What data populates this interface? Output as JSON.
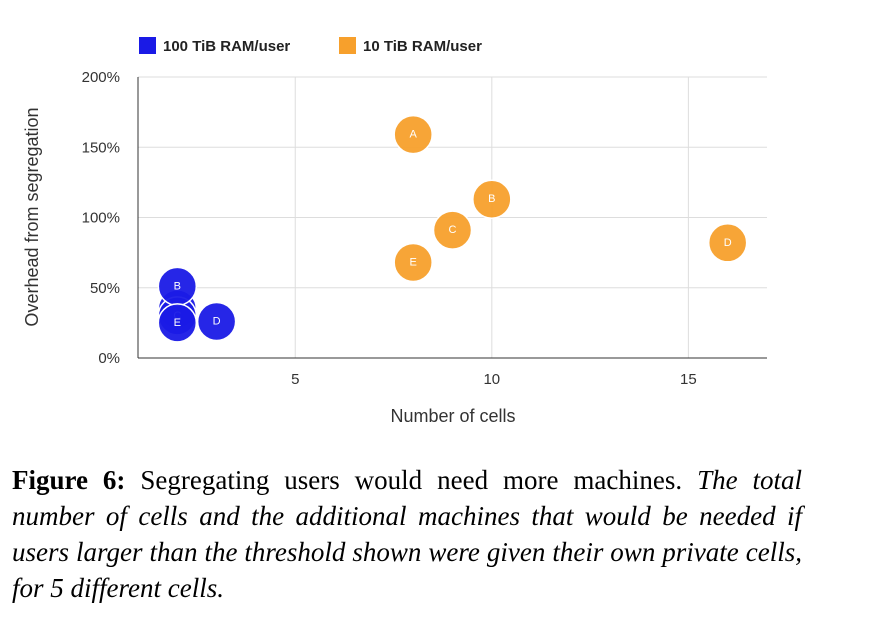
{
  "chart_data": {
    "type": "scatter",
    "xlabel": "Number of cells",
    "ylabel": "Overhead from segregation",
    "xlim": [
      1,
      17
    ],
    "ylim": [
      0,
      200
    ],
    "x_ticks": [
      5,
      10,
      15
    ],
    "x_tick_labels": [
      "5",
      "10",
      "15"
    ],
    "y_ticks": [
      0,
      50,
      100,
      150,
      200
    ],
    "y_tick_labels": [
      "0%",
      "50%",
      "100%",
      "150%",
      "200%"
    ],
    "grid": true,
    "legend": "top-left",
    "series": [
      {
        "name": "100 TiB RAM/user",
        "color": "#1a1ae6",
        "points": [
          {
            "label": "A",
            "x": 2,
            "y": 35
          },
          {
            "label": "C",
            "x": 2,
            "y": 30
          },
          {
            "label": "B",
            "x": 2,
            "y": 51
          },
          {
            "label": "E",
            "x": 2,
            "y": 25
          },
          {
            "label": "D",
            "x": 3,
            "y": 26
          }
        ]
      },
      {
        "name": "10 TiB RAM/user",
        "color": "#f7a02c",
        "points": [
          {
            "label": "A",
            "x": 8,
            "y": 159
          },
          {
            "label": "B",
            "x": 10,
            "y": 113
          },
          {
            "label": "C",
            "x": 9,
            "y": 91
          },
          {
            "label": "E",
            "x": 8,
            "y": 68
          },
          {
            "label": "D",
            "x": 16,
            "y": 82
          }
        ]
      }
    ]
  },
  "caption": {
    "label": "Figure 6:",
    "text": " Segregating users would need more machines. ",
    "description": "The total number of cells and the additional machines that would be needed if users larger than the threshold shown were given their own private cells, for 5 different cells."
  }
}
